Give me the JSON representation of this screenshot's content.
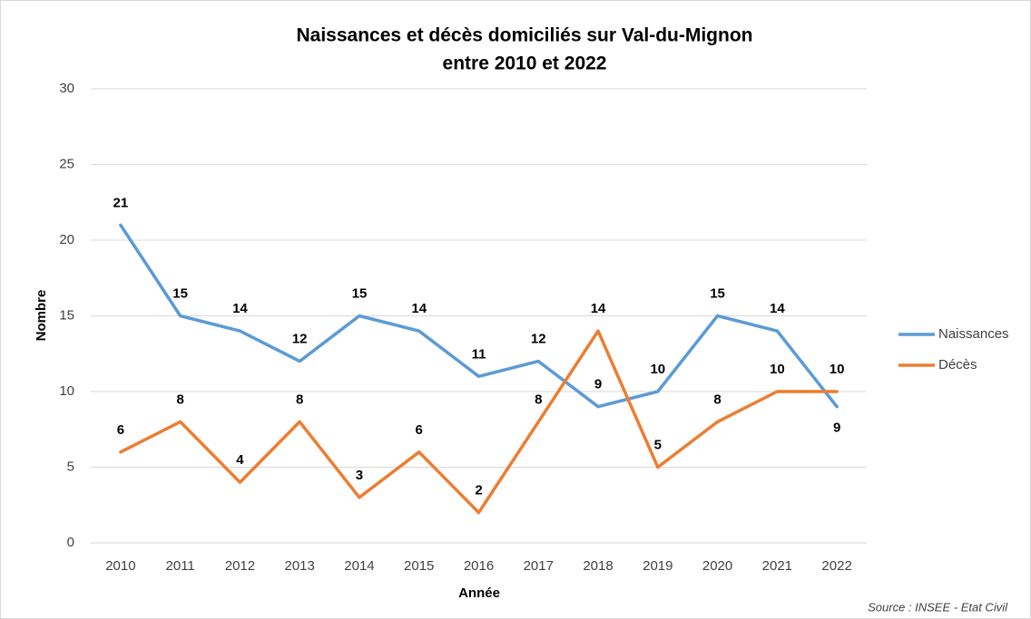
{
  "chart_data": {
    "type": "line",
    "title": [
      "Naissances et décès domiciliés sur Val-du-Mignon",
      "entre 2010 et 2022"
    ],
    "x_label": "Année",
    "y_label": "Nombre",
    "source": "Source : INSEE - Etat Civil",
    "categories": [
      "2010",
      "2011",
      "2012",
      "2013",
      "2014",
      "2015",
      "2016",
      "2017",
      "2018",
      "2019",
      "2020",
      "2021",
      "2022"
    ],
    "series": [
      {
        "name": "Naissances",
        "color": "#5b9bd5",
        "values": [
          21,
          15,
          14,
          12,
          15,
          14,
          11,
          12,
          9,
          10,
          15,
          14,
          9
        ]
      },
      {
        "name": "Décès",
        "color": "#ed7d31",
        "values": [
          6,
          8,
          4,
          8,
          3,
          6,
          2,
          8,
          14,
          5,
          8,
          10,
          10
        ]
      }
    ],
    "ylim": [
      0,
      30
    ],
    "yticks": [
      0,
      5,
      10,
      15,
      20,
      25,
      30
    ],
    "grid": true,
    "legend": "right",
    "data_labels": true
  }
}
